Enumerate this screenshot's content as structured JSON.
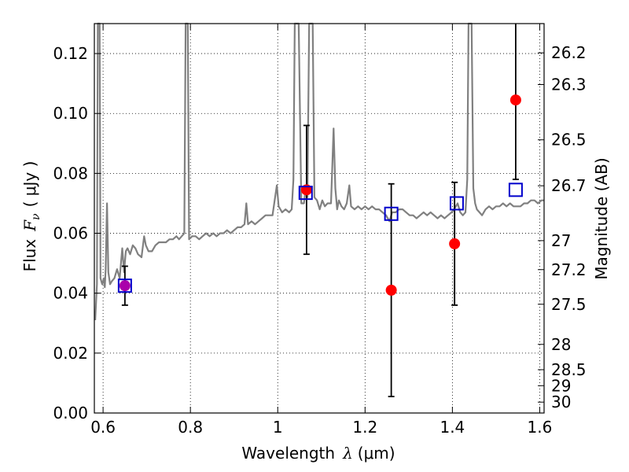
{
  "chart_data": {
    "type": "scatter",
    "xlabel_prefix": "Wavelength",
    "xlabel_symbol": "λ",
    "xlabel_units": "(μm)",
    "ylabel_prefix": "Flux",
    "ylabel_symbol": "F",
    "ylabel_sub": "ν",
    "ylabel_units": "( μJy )",
    "y2label": "Magnitude (AB)",
    "xlim": [
      0.58,
      1.61
    ],
    "ylim": [
      0.0,
      0.13
    ],
    "x_ticks": [
      0.6,
      0.8,
      1.0,
      1.2,
      1.4,
      1.6
    ],
    "x_tick_labels": [
      "0.6",
      "0.8",
      "1",
      "1.2",
      "1.4",
      "1.6"
    ],
    "y_ticks": [
      0.0,
      0.02,
      0.04,
      0.06,
      0.08,
      0.1,
      0.12
    ],
    "y_tick_labels": [
      "0.00",
      "0.02",
      "0.04",
      "0.06",
      "0.08",
      "0.10",
      "0.12"
    ],
    "mag_ticks": [
      26.2,
      26.3,
      26.5,
      26.7,
      27,
      27.2,
      27.5,
      28,
      28.5,
      29,
      30
    ],
    "mag_tick_labels": [
      "26.2",
      "26.3",
      "26.5",
      "26.7",
      "27",
      "27.2",
      "27.5",
      "28",
      "28.5",
      "29",
      "30"
    ],
    "grid": true,
    "colors": {
      "model_spectrum": "#808080",
      "observed_points": "#ff0000",
      "model_photometry": "#0000cc",
      "errorbars": "#000000",
      "overlap_point": "#aa00aa"
    },
    "observed": [
      {
        "x": 0.65,
        "y": 0.0425,
        "yerr_low": 0.0065,
        "yerr_high": 0.0065
      },
      {
        "x": 1.066,
        "y": 0.0745,
        "yerr_low": 0.0215,
        "yerr_high": 0.0215
      },
      {
        "x": 1.26,
        "y": 0.041,
        "yerr_low": 0.0355,
        "yerr_high": 0.0355
      },
      {
        "x": 1.405,
        "y": 0.0565,
        "yerr_low": 0.0205,
        "yerr_high": 0.0205
      },
      {
        "x": 1.545,
        "y": 0.1045,
        "yerr_low": 0.0265,
        "yerr_high": 0.0265
      }
    ],
    "model_photometry": [
      {
        "x": 0.65,
        "y": 0.0425
      },
      {
        "x": 1.064,
        "y": 0.0735
      },
      {
        "x": 1.26,
        "y": 0.0665
      },
      {
        "x": 1.41,
        "y": 0.07
      },
      {
        "x": 1.545,
        "y": 0.0745
      }
    ],
    "spectrum": [
      [
        0.582,
        0.031
      ],
      [
        0.586,
        0.043
      ],
      [
        0.588,
        0.13
      ],
      [
        0.59,
        0.13
      ],
      [
        0.592,
        0.13
      ],
      [
        0.594,
        0.045
      ],
      [
        0.598,
        0.043
      ],
      [
        0.602,
        0.045
      ],
      [
        0.604,
        0.042
      ],
      [
        0.606,
        0.048
      ],
      [
        0.609,
        0.07
      ],
      [
        0.612,
        0.047
      ],
      [
        0.616,
        0.043
      ],
      [
        0.62,
        0.044
      ],
      [
        0.626,
        0.045
      ],
      [
        0.632,
        0.048
      ],
      [
        0.638,
        0.045
      ],
      [
        0.644,
        0.055
      ],
      [
        0.648,
        0.047
      ],
      [
        0.652,
        0.054
      ],
      [
        0.656,
        0.055
      ],
      [
        0.662,
        0.053
      ],
      [
        0.668,
        0.056
      ],
      [
        0.674,
        0.055
      ],
      [
        0.68,
        0.053
      ],
      [
        0.688,
        0.052
      ],
      [
        0.694,
        0.059
      ],
      [
        0.698,
        0.056
      ],
      [
        0.704,
        0.054
      ],
      [
        0.712,
        0.054
      ],
      [
        0.72,
        0.056
      ],
      [
        0.728,
        0.057
      ],
      [
        0.736,
        0.057
      ],
      [
        0.744,
        0.057
      ],
      [
        0.752,
        0.058
      ],
      [
        0.76,
        0.058
      ],
      [
        0.768,
        0.059
      ],
      [
        0.774,
        0.058
      ],
      [
        0.78,
        0.059
      ],
      [
        0.786,
        0.06
      ],
      [
        0.789,
        0.13
      ],
      [
        0.794,
        0.13
      ],
      [
        0.797,
        0.058
      ],
      [
        0.804,
        0.059
      ],
      [
        0.812,
        0.059
      ],
      [
        0.82,
        0.058
      ],
      [
        0.828,
        0.059
      ],
      [
        0.836,
        0.06
      ],
      [
        0.844,
        0.059
      ],
      [
        0.852,
        0.06
      ],
      [
        0.86,
        0.059
      ],
      [
        0.868,
        0.06
      ],
      [
        0.876,
        0.06
      ],
      [
        0.884,
        0.061
      ],
      [
        0.892,
        0.06
      ],
      [
        0.9,
        0.061
      ],
      [
        0.908,
        0.062
      ],
      [
        0.916,
        0.062
      ],
      [
        0.924,
        0.063
      ],
      [
        0.928,
        0.07
      ],
      [
        0.932,
        0.063
      ],
      [
        0.94,
        0.064
      ],
      [
        0.948,
        0.063
      ],
      [
        0.956,
        0.064
      ],
      [
        0.964,
        0.065
      ],
      [
        0.972,
        0.066
      ],
      [
        0.98,
        0.066
      ],
      [
        0.988,
        0.066
      ],
      [
        0.994,
        0.072
      ],
      [
        0.998,
        0.076
      ],
      [
        1.002,
        0.069
      ],
      [
        1.01,
        0.067
      ],
      [
        1.018,
        0.068
      ],
      [
        1.026,
        0.067
      ],
      [
        1.032,
        0.068
      ],
      [
        1.036,
        0.078
      ],
      [
        1.039,
        0.13
      ],
      [
        1.048,
        0.13
      ],
      [
        1.054,
        0.07
      ],
      [
        1.06,
        0.07
      ],
      [
        1.064,
        0.075
      ],
      [
        1.068,
        0.072
      ],
      [
        1.072,
        0.13
      ],
      [
        1.08,
        0.13
      ],
      [
        1.084,
        0.072
      ],
      [
        1.09,
        0.071
      ],
      [
        1.096,
        0.068
      ],
      [
        1.102,
        0.071
      ],
      [
        1.108,
        0.069
      ],
      [
        1.114,
        0.07
      ],
      [
        1.122,
        0.07
      ],
      [
        1.128,
        0.095
      ],
      [
        1.132,
        0.075
      ],
      [
        1.136,
        0.068
      ],
      [
        1.14,
        0.071
      ],
      [
        1.146,
        0.069
      ],
      [
        1.152,
        0.068
      ],
      [
        1.158,
        0.07
      ],
      [
        1.164,
        0.076
      ],
      [
        1.168,
        0.069
      ],
      [
        1.176,
        0.068
      ],
      [
        1.184,
        0.069
      ],
      [
        1.192,
        0.068
      ],
      [
        1.2,
        0.069
      ],
      [
        1.208,
        0.068
      ],
      [
        1.216,
        0.069
      ],
      [
        1.224,
        0.068
      ],
      [
        1.232,
        0.068
      ],
      [
        1.24,
        0.067
      ],
      [
        1.248,
        0.066
      ],
      [
        1.256,
        0.064
      ],
      [
        1.262,
        0.067
      ],
      [
        1.27,
        0.067
      ],
      [
        1.278,
        0.068
      ],
      [
        1.286,
        0.068
      ],
      [
        1.294,
        0.067
      ],
      [
        1.302,
        0.066
      ],
      [
        1.31,
        0.066
      ],
      [
        1.318,
        0.065
      ],
      [
        1.326,
        0.066
      ],
      [
        1.334,
        0.067
      ],
      [
        1.342,
        0.066
      ],
      [
        1.35,
        0.067
      ],
      [
        1.358,
        0.066
      ],
      [
        1.366,
        0.065
      ],
      [
        1.374,
        0.066
      ],
      [
        1.382,
        0.065
      ],
      [
        1.39,
        0.066
      ],
      [
        1.398,
        0.067
      ],
      [
        1.404,
        0.068
      ],
      [
        1.412,
        0.07
      ],
      [
        1.418,
        0.067
      ],
      [
        1.424,
        0.066
      ],
      [
        1.43,
        0.067
      ],
      [
        1.434,
        0.078
      ],
      [
        1.437,
        0.13
      ],
      [
        1.444,
        0.13
      ],
      [
        1.448,
        0.075
      ],
      [
        1.452,
        0.07
      ],
      [
        1.456,
        0.068
      ],
      [
        1.462,
        0.067
      ],
      [
        1.468,
        0.066
      ],
      [
        1.476,
        0.068
      ],
      [
        1.484,
        0.069
      ],
      [
        1.492,
        0.068
      ],
      [
        1.5,
        0.069
      ],
      [
        1.508,
        0.069
      ],
      [
        1.516,
        0.07
      ],
      [
        1.524,
        0.069
      ],
      [
        1.532,
        0.07
      ],
      [
        1.54,
        0.069
      ],
      [
        1.548,
        0.069
      ],
      [
        1.556,
        0.069
      ],
      [
        1.564,
        0.07
      ],
      [
        1.572,
        0.07
      ],
      [
        1.58,
        0.071
      ],
      [
        1.588,
        0.071
      ],
      [
        1.596,
        0.07
      ],
      [
        1.604,
        0.071
      ],
      [
        1.61,
        0.071
      ]
    ]
  }
}
